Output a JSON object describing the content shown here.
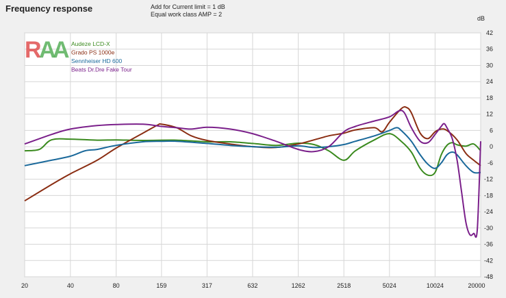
{
  "header": {
    "title": "Frequency response",
    "note_line1": "Add for Current limit = 1 dB",
    "note_line2": "Equal work class AMP = 2"
  },
  "logo": {
    "text": "RAA",
    "colors": [
      "#e05050",
      "#58b05a"
    ]
  },
  "chart_data": {
    "type": "line",
    "title": "Frequency response",
    "ylabel": "dB",
    "xscale": "log",
    "xlim": [
      20,
      20000
    ],
    "ylim": [
      -48,
      42
    ],
    "x_ticks": [
      20,
      40,
      80,
      159,
      317,
      632,
      1262,
      2518,
      5024,
      10024,
      20000
    ],
    "y_ticks": [
      42,
      36,
      30,
      24,
      18,
      12,
      6,
      0,
      -6,
      -12,
      -18,
      -24,
      -30,
      -36,
      -42,
      -48
    ],
    "grid": true,
    "legend_position": "top-left",
    "series": [
      {
        "name": "Audeze LCD-X",
        "color": "#3a8a1e",
        "points": [
          [
            20,
            -1.5
          ],
          [
            25,
            -1
          ],
          [
            30,
            2.5
          ],
          [
            40,
            2.8
          ],
          [
            60,
            2.4
          ],
          [
            80,
            2.5
          ],
          [
            120,
            2.3
          ],
          [
            200,
            2.4
          ],
          [
            317,
            1.8
          ],
          [
            450,
            1.8
          ],
          [
            632,
            1.2
          ],
          [
            900,
            0.5
          ],
          [
            1262,
            1.3
          ],
          [
            1600,
            0.8
          ],
          [
            2000,
            -1.5
          ],
          [
            2518,
            -5
          ],
          [
            3000,
            -1.5
          ],
          [
            4000,
            2.5
          ],
          [
            5024,
            4.8
          ],
          [
            6000,
            2
          ],
          [
            7000,
            -2
          ],
          [
            8000,
            -8
          ],
          [
            9000,
            -10.5
          ],
          [
            10024,
            -9.5
          ],
          [
            11000,
            -3
          ],
          [
            12000,
            0.5
          ],
          [
            13000,
            1.5
          ],
          [
            14000,
            0.7
          ],
          [
            16000,
            0.2
          ],
          [
            18000,
            1
          ],
          [
            20000,
            -1.5
          ]
        ]
      },
      {
        "name": "Grado PS 1000e",
        "color": "#8a2d12",
        "points": [
          [
            20,
            -20
          ],
          [
            30,
            -14
          ],
          [
            40,
            -10
          ],
          [
            60,
            -5
          ],
          [
            80,
            -0.5
          ],
          [
            120,
            5
          ],
          [
            150,
            8
          ],
          [
            159,
            8.3
          ],
          [
            200,
            7
          ],
          [
            250,
            4
          ],
          [
            317,
            2.3
          ],
          [
            450,
            1
          ],
          [
            632,
            0
          ],
          [
            900,
            -0.3
          ],
          [
            1262,
            1
          ],
          [
            1600,
            2.5
          ],
          [
            2000,
            4
          ],
          [
            2518,
            5
          ],
          [
            3000,
            6.2
          ],
          [
            4000,
            7
          ],
          [
            4500,
            5.5
          ],
          [
            5024,
            9
          ],
          [
            6000,
            14
          ],
          [
            6500,
            14.5
          ],
          [
            7000,
            12.5
          ],
          [
            8000,
            5
          ],
          [
            9000,
            3
          ],
          [
            10024,
            5.5
          ],
          [
            11000,
            6.5
          ],
          [
            12000,
            6
          ],
          [
            14000,
            2.5
          ],
          [
            16000,
            -2.5
          ],
          [
            18000,
            -5
          ],
          [
            20000,
            -7
          ]
        ]
      },
      {
        "name": "Sennheiser HD 600",
        "color": "#19689a",
        "points": [
          [
            20,
            -7
          ],
          [
            30,
            -5
          ],
          [
            40,
            -3.5
          ],
          [
            50,
            -1.5
          ],
          [
            60,
            -1
          ],
          [
            80,
            0.5
          ],
          [
            120,
            1.8
          ],
          [
            159,
            2
          ],
          [
            200,
            2
          ],
          [
            317,
            1.2
          ],
          [
            450,
            0.5
          ],
          [
            632,
            0
          ],
          [
            900,
            -0.2
          ],
          [
            1262,
            0.3
          ],
          [
            1600,
            -0.3
          ],
          [
            2000,
            0
          ],
          [
            2518,
            0.8
          ],
          [
            3000,
            2
          ],
          [
            4000,
            4
          ],
          [
            5024,
            6
          ],
          [
            5600,
            7
          ],
          [
            6000,
            6
          ],
          [
            7000,
            2
          ],
          [
            8000,
            -3
          ],
          [
            9000,
            -6.5
          ],
          [
            10024,
            -8
          ],
          [
            11000,
            -6
          ],
          [
            12000,
            -3
          ],
          [
            13000,
            -2
          ],
          [
            14000,
            -3
          ],
          [
            16000,
            -7
          ],
          [
            18000,
            -9.5
          ],
          [
            20000,
            -9.5
          ]
        ]
      },
      {
        "name": "Beats Dr.Dre Fake Tour",
        "color": "#7a1f8a",
        "points": [
          [
            20,
            1
          ],
          [
            30,
            4.5
          ],
          [
            40,
            6.5
          ],
          [
            60,
            7.8
          ],
          [
            80,
            8.2
          ],
          [
            120,
            8.3
          ],
          [
            159,
            7.5
          ],
          [
            200,
            7
          ],
          [
            250,
            6.5
          ],
          [
            317,
            7.2
          ],
          [
            450,
            6.5
          ],
          [
            632,
            4.8
          ],
          [
            900,
            2
          ],
          [
            1262,
            -1
          ],
          [
            1600,
            -1.8
          ],
          [
            2000,
            0
          ],
          [
            2518,
            5.5
          ],
          [
            3000,
            7.5
          ],
          [
            4000,
            9.5
          ],
          [
            5024,
            11
          ],
          [
            5800,
            13.2
          ],
          [
            6300,
            12.5
          ],
          [
            7000,
            7
          ],
          [
            8000,
            2
          ],
          [
            9000,
            1.5
          ],
          [
            10024,
            4.5
          ],
          [
            11000,
            7.5
          ],
          [
            11500,
            8.5
          ],
          [
            12000,
            7
          ],
          [
            13000,
            3
          ],
          [
            14000,
            -5
          ],
          [
            15000,
            -17
          ],
          [
            16000,
            -28
          ],
          [
            17000,
            -32.5
          ],
          [
            18000,
            -32
          ],
          [
            19000,
            -30.5
          ],
          [
            20000,
            2
          ]
        ]
      }
    ]
  }
}
